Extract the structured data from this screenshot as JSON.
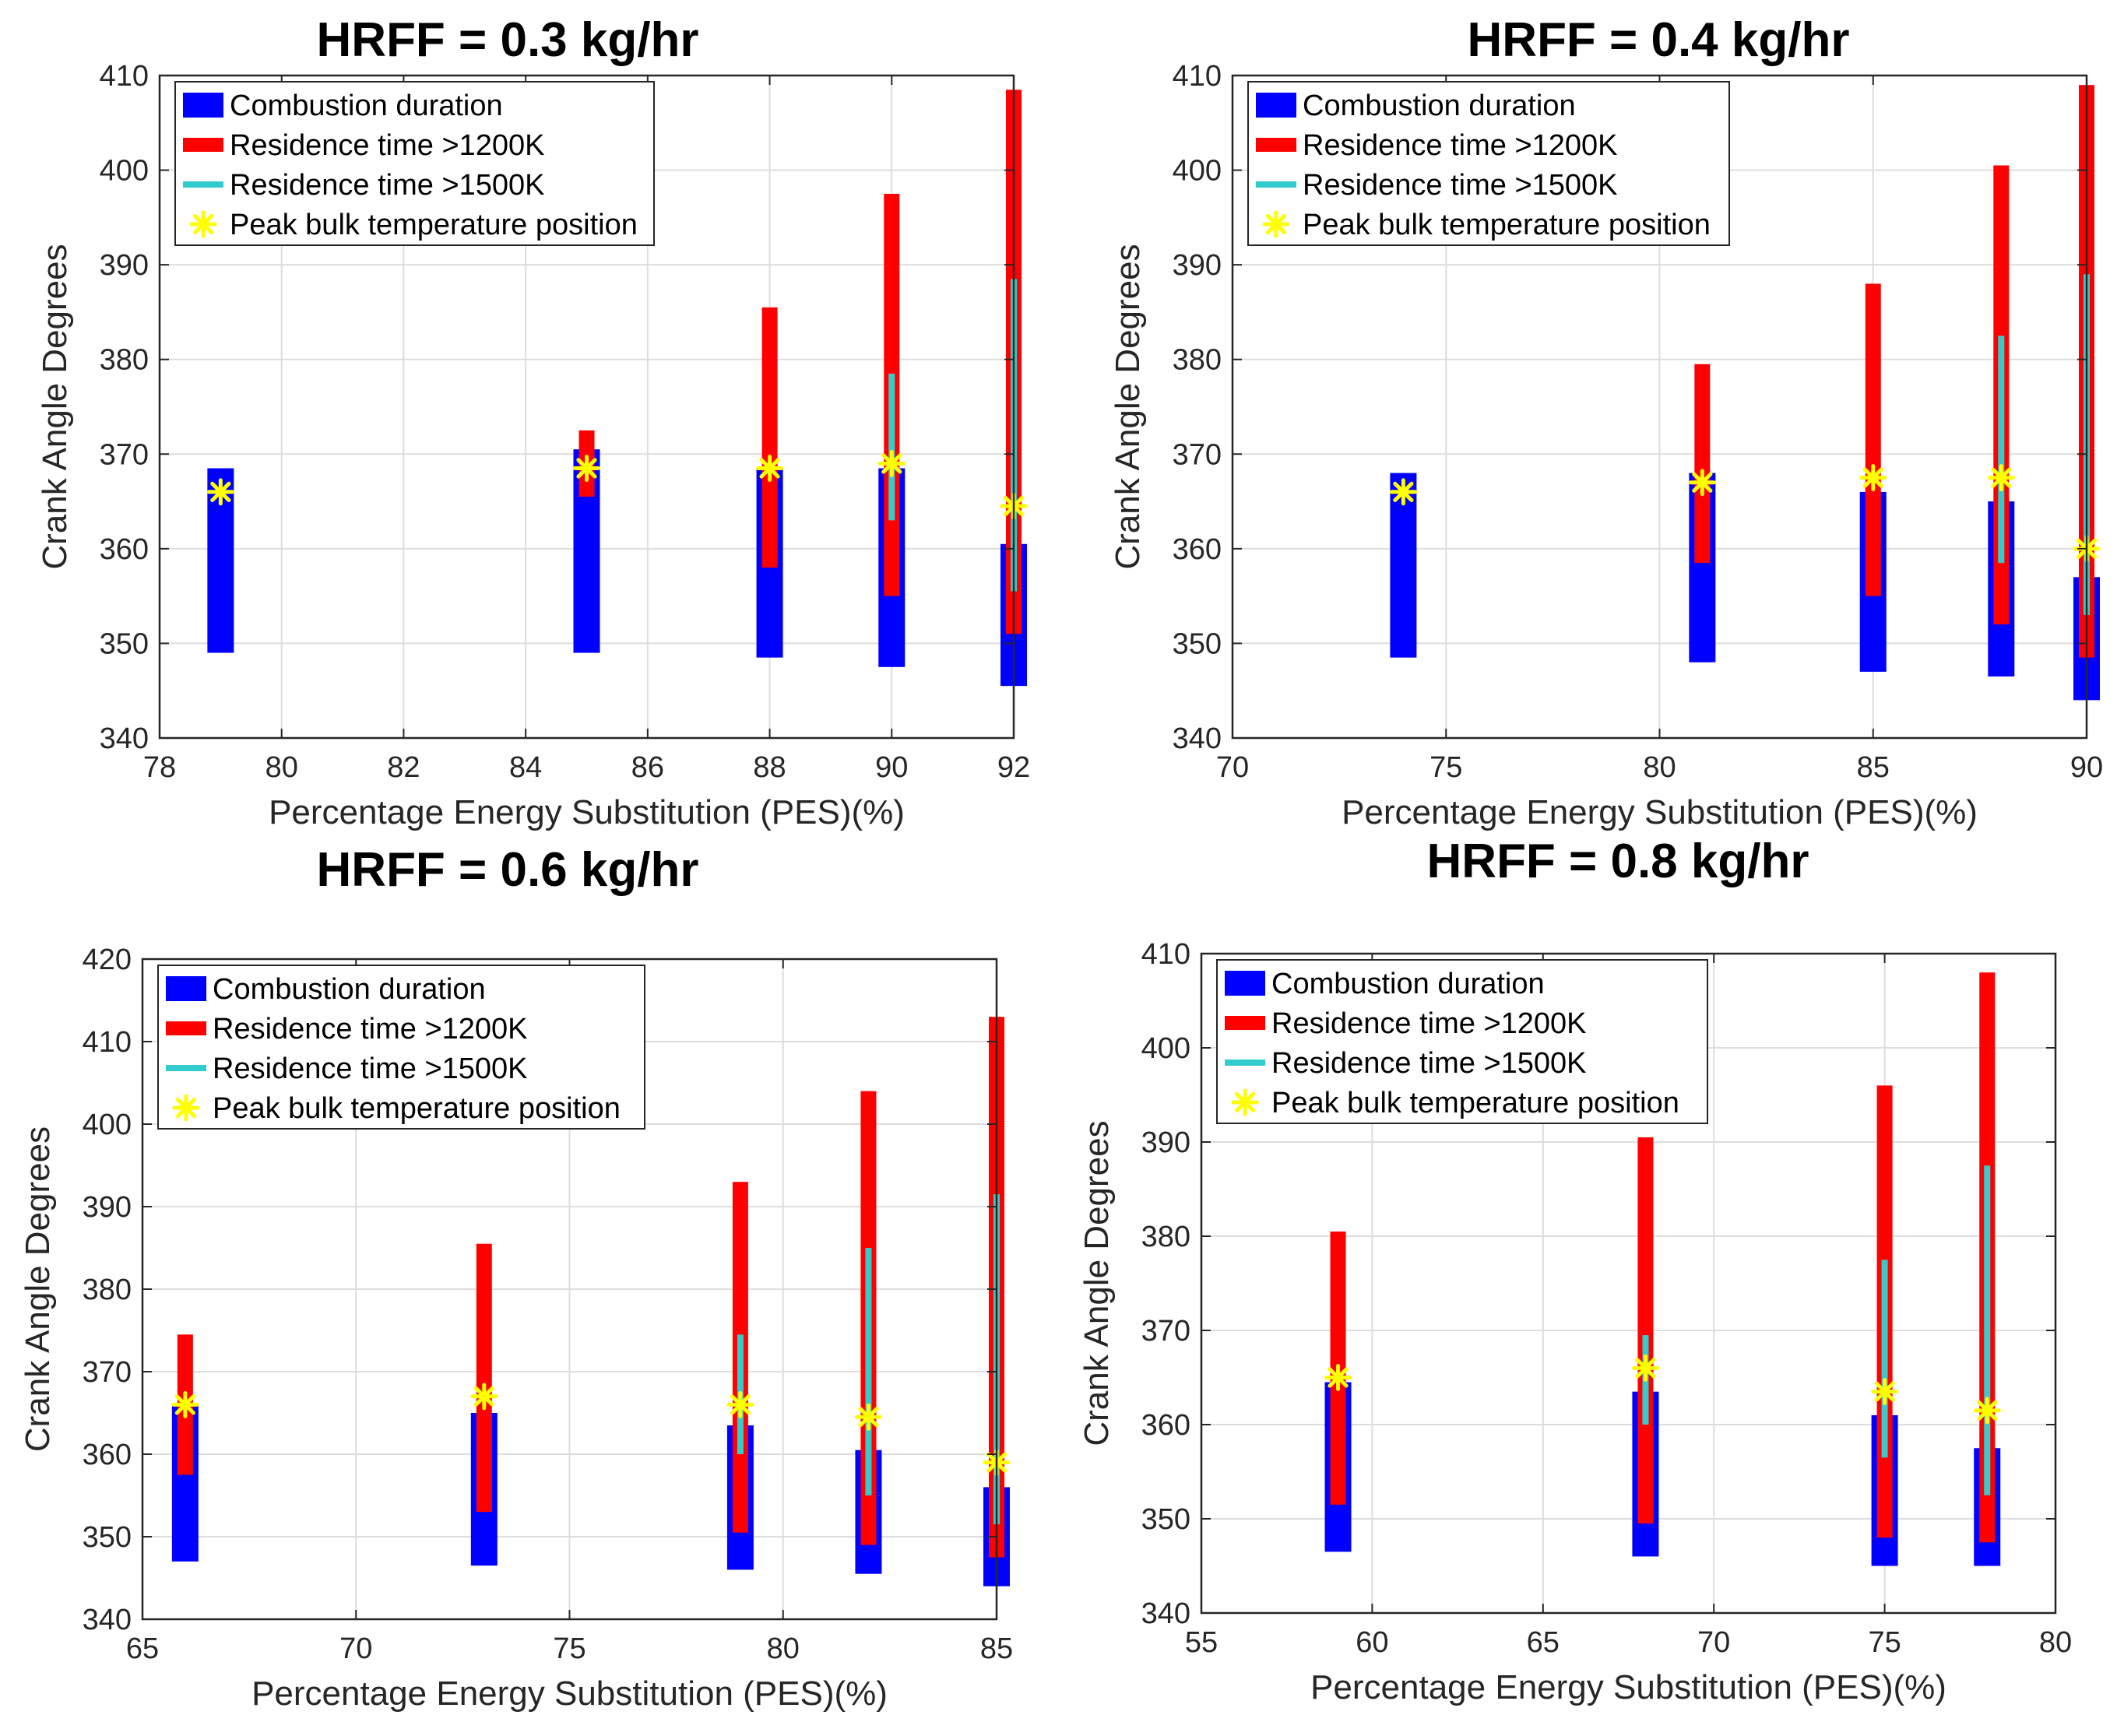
{
  "chart_data": [
    {
      "type": "bar",
      "title": "HRFF = 0.3 kg/hr",
      "xlabel": "Percentage Energy Substitution (PES)(%)",
      "ylabel": "Crank Angle Degrees",
      "xlim": [
        78,
        92
      ],
      "ylim": [
        340,
        410
      ],
      "xticks": [
        78,
        80,
        82,
        84,
        86,
        88,
        90,
        92
      ],
      "yticks": [
        340,
        350,
        360,
        370,
        380,
        390,
        400,
        410
      ],
      "legend": [
        "Combustion duration",
        "Residence time >1200K",
        "Residence time >1500K",
        "Peak bulk temperature position"
      ],
      "points": [
        {
          "x": 79,
          "combustion": [
            349,
            368.5
          ],
          "res1200": null,
          "res1500": null,
          "peak": 366
        },
        {
          "x": 85,
          "combustion": [
            349,
            370.5
          ],
          "res1200": [
            365.5,
            372.5
          ],
          "res1500": null,
          "peak": 368.5
        },
        {
          "x": 88,
          "combustion": [
            348.5,
            368.5
          ],
          "res1200": [
            358,
            385.5
          ],
          "res1500": null,
          "peak": 368.5
        },
        {
          "x": 90,
          "combustion": [
            347.5,
            368.5
          ],
          "res1200": [
            355,
            397.5
          ],
          "res1500": [
            363,
            378.5
          ],
          "peak": 369
        },
        {
          "x": 92,
          "combustion": [
            345.5,
            360.5
          ],
          "res1200": [
            351,
            408.5
          ],
          "res1500": [
            355.5,
            388.5
          ],
          "peak": 364.5
        }
      ]
    },
    {
      "type": "bar",
      "title": "HRFF = 0.4 kg/hr",
      "xlabel": "Percentage Energy Substitution (PES)(%)",
      "ylabel": "Crank Angle Degrees",
      "xlim": [
        70,
        90
      ],
      "ylim": [
        340,
        410
      ],
      "xticks": [
        70,
        75,
        80,
        85,
        90
      ],
      "yticks": [
        340,
        350,
        360,
        370,
        380,
        390,
        400,
        410
      ],
      "legend": [
        "Combustion duration",
        "Residence time >1200K",
        "Residence time >1500K",
        "Peak bulk temperature position"
      ],
      "points": [
        {
          "x": 74,
          "combustion": [
            348.5,
            368
          ],
          "res1200": null,
          "res1500": null,
          "peak": 366
        },
        {
          "x": 81,
          "combustion": [
            348,
            368
          ],
          "res1200": [
            358.5,
            379.5
          ],
          "res1500": null,
          "peak": 367
        },
        {
          "x": 85,
          "combustion": [
            347,
            366
          ],
          "res1200": [
            355,
            388
          ],
          "res1500": null,
          "peak": 367.5
        },
        {
          "x": 88,
          "combustion": [
            346.5,
            365
          ],
          "res1200": [
            352,
            400.5
          ],
          "res1500": [
            358.5,
            382.5
          ],
          "peak": 367.5
        },
        {
          "x": 90,
          "combustion": [
            344,
            357
          ],
          "res1200": [
            348.5,
            409
          ],
          "res1500": [
            353,
            389
          ],
          "peak": 360
        }
      ]
    },
    {
      "type": "bar",
      "title": "HRFF = 0.6 kg/hr",
      "xlabel": "Percentage Energy Substitution (PES)(%)",
      "ylabel": "Crank Angle Degrees",
      "xlim": [
        65,
        85
      ],
      "ylim": [
        340,
        420
      ],
      "xticks": [
        65,
        70,
        75,
        80,
        85
      ],
      "yticks": [
        340,
        350,
        360,
        370,
        380,
        390,
        400,
        410,
        420
      ],
      "legend": [
        "Combustion duration",
        "Residence time >1200K",
        "Residence time >1500K",
        "Peak bulk temperature position"
      ],
      "points": [
        {
          "x": 66,
          "combustion": [
            347,
            366
          ],
          "res1200": [
            357.5,
            374.5
          ],
          "res1500": null,
          "peak": 366
        },
        {
          "x": 73,
          "combustion": [
            346.5,
            365
          ],
          "res1200": [
            353,
            385.5
          ],
          "res1500": null,
          "peak": 367
        },
        {
          "x": 79,
          "combustion": [
            346,
            363.5
          ],
          "res1200": [
            350.5,
            393
          ],
          "res1500": [
            360,
            374.5
          ],
          "peak": 366
        },
        {
          "x": 82,
          "combustion": [
            345.5,
            360.5
          ],
          "res1200": [
            349,
            404
          ],
          "res1500": [
            355,
            385
          ],
          "peak": 364.5
        },
        {
          "x": 85,
          "combustion": [
            344,
            356
          ],
          "res1200": [
            347.5,
            413
          ],
          "res1500": [
            351.5,
            391.5
          ],
          "peak": 359
        }
      ]
    },
    {
      "type": "bar",
      "title": "HRFF = 0.8 kg/hr",
      "xlabel": "Percentage Energy Substitution (PES)(%)",
      "ylabel": "Crank Angle Degrees",
      "xlim": [
        55,
        80
      ],
      "ylim": [
        340,
        410
      ],
      "xticks": [
        55,
        60,
        65,
        70,
        75,
        80
      ],
      "yticks": [
        340,
        350,
        360,
        370,
        380,
        390,
        400,
        410
      ],
      "legend": [
        "Combustion duration",
        "Residence time >1200K",
        "Residence time >1500K",
        "Peak bulk temperature position"
      ],
      "points": [
        {
          "x": 59,
          "combustion": [
            346.5,
            364.5
          ],
          "res1200": [
            351.5,
            380.5
          ],
          "res1500": null,
          "peak": 365
        },
        {
          "x": 68,
          "combustion": [
            346,
            363.5
          ],
          "res1200": [
            349.5,
            390.5
          ],
          "res1500": [
            360,
            369.5
          ],
          "peak": 366
        },
        {
          "x": 75,
          "combustion": [
            345,
            361
          ],
          "res1200": [
            348,
            396
          ],
          "res1500": [
            356.5,
            377.5
          ],
          "peak": 363.5
        },
        {
          "x": 78,
          "combustion": [
            345,
            357.5
          ],
          "res1200": [
            347.5,
            408
          ],
          "res1500": [
            352.5,
            387.5
          ],
          "peak": 361.5
        }
      ]
    }
  ],
  "colors": {
    "combustion": "#0000ff",
    "res1200": "#ff0000",
    "res1500": "#33cccc",
    "peak": "#ffff00",
    "grid": "#dddddd",
    "axis": "#262626"
  }
}
